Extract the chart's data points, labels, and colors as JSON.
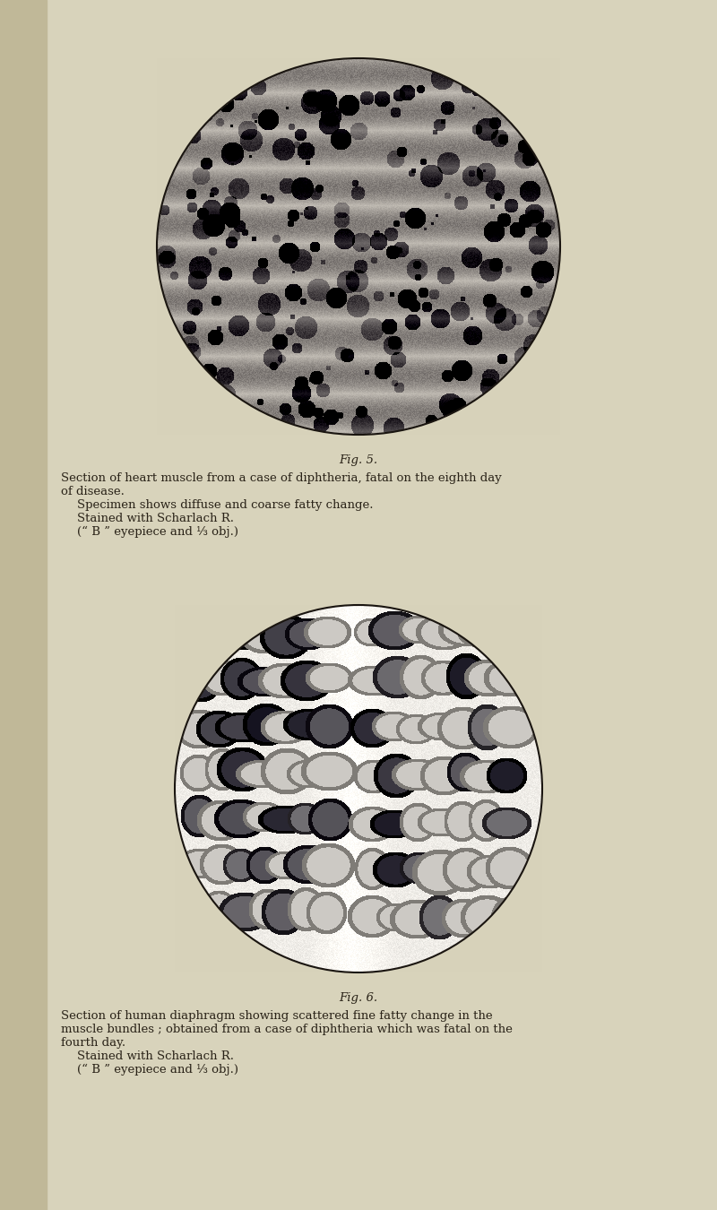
{
  "background_color": "#d8d3bb",
  "left_margin_color": "#c0b898",
  "fig5_caption": "Fig. 5.",
  "fig5_text1": "Section of heart muscle from a case of diphtheria, fatal on the eighth day",
  "fig5_text2": "of disease.",
  "fig5_text3": "Specimen shows diffuse and coarse fatty change.",
  "fig5_text4": "Stained with Scharlach R.",
  "fig5_text5": "(“ B ” eyepiece and ⅓ obj.)",
  "fig6_caption": "Fig. 6.",
  "fig6_text1": "Section of human diaphragm showing scattered fine fatty change in the",
  "fig6_text2": "muscle bundles ; obtained from a case of diphtheria which was fatal on the",
  "fig6_text3": "fourth day.",
  "fig6_text4": "Stained with Scharlach R.",
  "fig6_text5": "(“ B ” eyepiece and ⅓ obj.)",
  "text_color": "#2a2318",
  "text_fontsize": 9.5,
  "caption_fontsize": 9.5,
  "bg_rgb": [
    0.847,
    0.827,
    0.733
  ]
}
